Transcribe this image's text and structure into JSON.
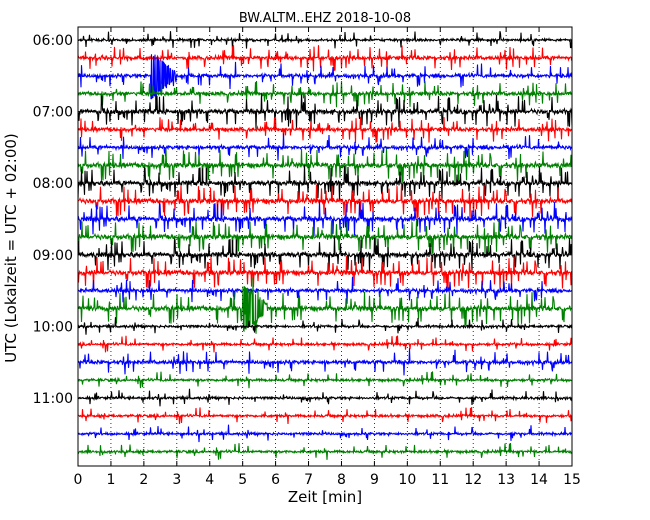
{
  "chart_data": {
    "type": "line",
    "title": "BW.ALTM..EHZ 2018-10-08",
    "xlabel": "Zeit  [min]",
    "ylabel": "UTC (Lokalzeit = UTC + 02:00)",
    "xlim": [
      0,
      15
    ],
    "x_ticks": [
      "0",
      "1",
      "2",
      "3",
      "4",
      "5",
      "6",
      "7",
      "8",
      "9",
      "10",
      "11",
      "12",
      "13",
      "14",
      "15"
    ],
    "y_ticks": [
      {
        "label": "06:00",
        "row": 0
      },
      {
        "label": "07:00",
        "row": 4
      },
      {
        "label": "08:00",
        "row": 8
      },
      {
        "label": "09:00",
        "row": 12
      },
      {
        "label": "10:00",
        "row": 16
      },
      {
        "label": "11:00",
        "row": 20
      }
    ],
    "row_minutes": 15,
    "color_cycle": [
      "#000000",
      "#ff0000",
      "#0000ff",
      "#008000"
    ],
    "grid": {
      "vertical_dotted": true
    },
    "series": [
      {
        "start": "06:00",
        "amplitude": "low"
      },
      {
        "start": "06:15",
        "amplitude": "medium"
      },
      {
        "start": "06:30",
        "amplitude": "medium",
        "event_min": 2.3
      },
      {
        "start": "06:45",
        "amplitude": "medium"
      },
      {
        "start": "07:00",
        "amplitude": "high"
      },
      {
        "start": "07:15",
        "amplitude": "medium"
      },
      {
        "start": "07:30",
        "amplitude": "medium"
      },
      {
        "start": "07:45",
        "amplitude": "high"
      },
      {
        "start": "08:00",
        "amplitude": "high"
      },
      {
        "start": "08:15",
        "amplitude": "high"
      },
      {
        "start": "08:30",
        "amplitude": "high"
      },
      {
        "start": "08:45",
        "amplitude": "high"
      },
      {
        "start": "09:00",
        "amplitude": "high"
      },
      {
        "start": "09:15",
        "amplitude": "high"
      },
      {
        "start": "09:30",
        "amplitude": "medium"
      },
      {
        "start": "09:45",
        "amplitude": "high",
        "event_min": 5.1
      },
      {
        "start": "10:00",
        "amplitude": "low"
      },
      {
        "start": "10:15",
        "amplitude": "low"
      },
      {
        "start": "10:30",
        "amplitude": "medium"
      },
      {
        "start": "10:45",
        "amplitude": "low"
      },
      {
        "start": "11:00",
        "amplitude": "low"
      },
      {
        "start": "11:15",
        "amplitude": "low"
      },
      {
        "start": "11:30",
        "amplitude": "low"
      },
      {
        "start": "11:45",
        "amplitude": "low"
      }
    ]
  }
}
